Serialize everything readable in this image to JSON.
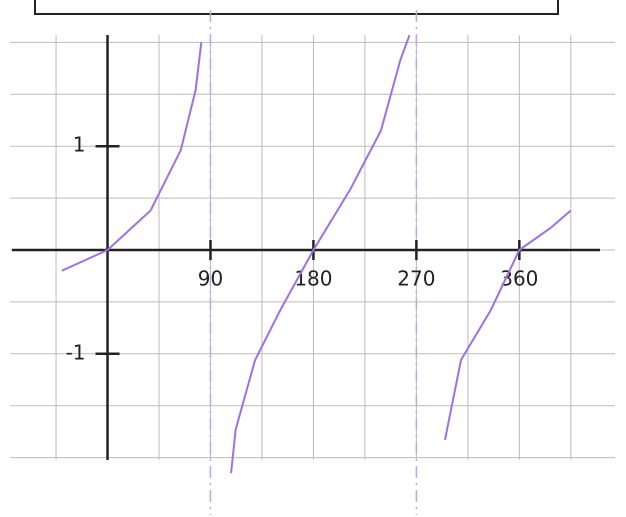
{
  "chart_data": {
    "type": "line",
    "x": [
      -40,
      0,
      37.6,
      64,
      77,
      82,
      null,
      108,
      112,
      129,
      151,
      180,
      212,
      239,
      256,
      264,
      null,
      295,
      309,
      335,
      360,
      387,
      405
    ],
    "series": [
      {
        "color": "#a070e0",
        "values": [
          -0.2,
          0,
          0.38,
          0.96,
          1.54,
          2.0,
          null,
          -2.15,
          -1.73,
          -1.06,
          -0.58,
          0,
          0.58,
          1.15,
          1.83,
          2.07,
          null,
          -1.83,
          -1.06,
          -0.58,
          0,
          0.21,
          0.38
        ]
      }
    ],
    "xlim": [
      -87,
      448
    ],
    "ylim": [
      -2.1,
      2.1
    ],
    "xticks": [
      90,
      180,
      270,
      360
    ],
    "yticks": [
      {
        "value": -1,
        "label": "-1"
      },
      {
        "value": 1,
        "label": "1"
      }
    ],
    "asymptotes": [
      90,
      270
    ],
    "grid": true
  }
}
